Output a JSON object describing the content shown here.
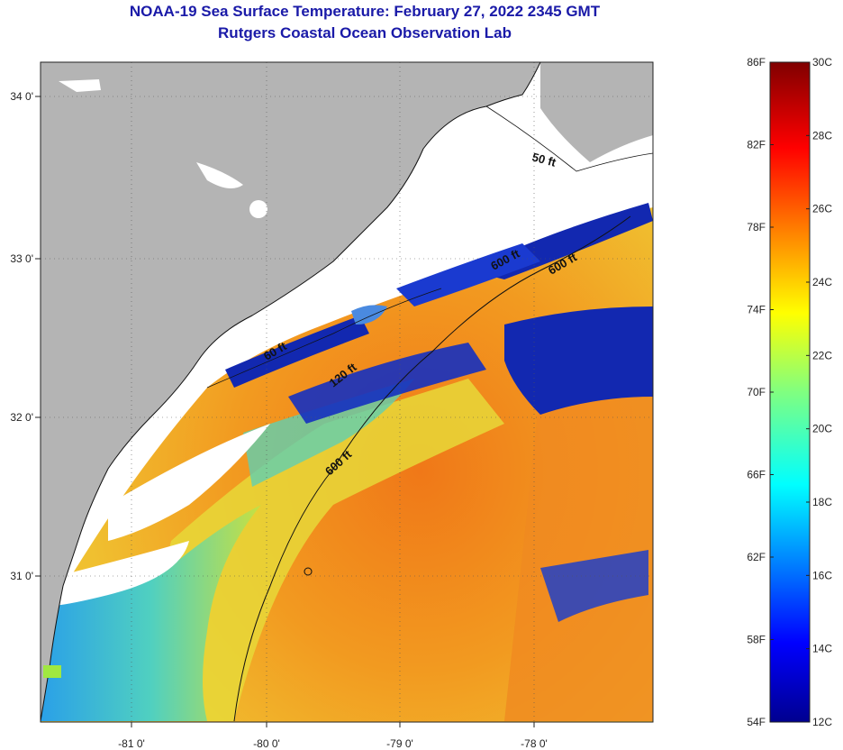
{
  "title": {
    "line1": "NOAA-19 Sea Surface Temperature:  February 27, 2022 2345 GMT",
    "line2": "Rutgers Coastal Ocean Observation Lab"
  },
  "map": {
    "lon_ticks": [
      "-81 0'",
      "-80 0'",
      "-79 0'",
      "-78 0'"
    ],
    "lat_ticks": [
      "34 0'",
      "33 0'",
      "32 0'",
      "31 0'"
    ],
    "contour_labels": [
      "50 ft",
      "600 ft",
      "600 ft",
      "120 ft",
      "60 ft",
      "600 ft"
    ],
    "colors": {
      "land": "#b4b4b4",
      "cloud": "#ffffff",
      "cold": "#1020a0",
      "warm": "#f08020"
    }
  },
  "colorbar": {
    "fahrenheit": [
      "86F",
      "82F",
      "78F",
      "74F",
      "70F",
      "66F",
      "62F",
      "58F",
      "54F"
    ],
    "celsius": [
      "30C",
      "28C",
      "26C",
      "24C",
      "22C",
      "20C",
      "18C",
      "16C",
      "14C",
      "12C"
    ],
    "min_c": 12,
    "max_c": 30,
    "min_f": 54,
    "max_f": 86
  }
}
